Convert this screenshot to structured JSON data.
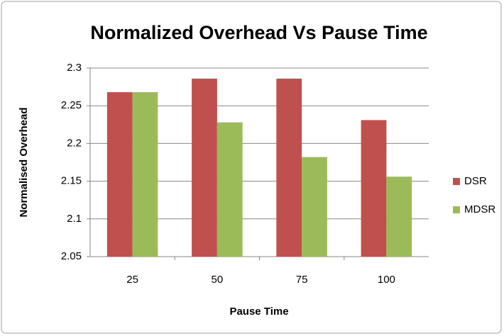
{
  "chart_data": {
    "type": "bar",
    "title": "Normalized Overhead Vs Pause Time",
    "x_label": "Pause Time",
    "y_label": "Normalised Overhead",
    "categories": [
      "25",
      "50",
      "75",
      "100"
    ],
    "series": [
      {
        "name": "DSR",
        "color": "#c0504d",
        "values": [
          2.268,
          2.286,
          2.286,
          2.231
        ]
      },
      {
        "name": "MDSR",
        "color": "#9bbb59",
        "values": [
          2.268,
          2.228,
          2.182,
          2.156
        ]
      }
    ],
    "ylim": [
      2.05,
      2.3
    ],
    "yticks": [
      2.05,
      2.1,
      2.15,
      2.2,
      2.25,
      2.3
    ],
    "grid": true,
    "legend": "right"
  }
}
